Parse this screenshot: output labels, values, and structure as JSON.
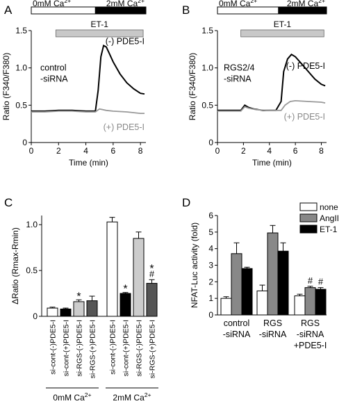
{
  "panels": {
    "A": {
      "letter": "A"
    },
    "B": {
      "letter": "B"
    },
    "C": {
      "letter": "C"
    },
    "D": {
      "letter": "D"
    }
  },
  "chart_data": [
    {
      "id": "A",
      "type": "line",
      "xlabel": "Time (min)",
      "ylabel": "Ratio (F340/F380)",
      "xlim": [
        0,
        8.4
      ],
      "ylim": [
        0,
        1.5
      ],
      "xticks": [
        "0",
        "2",
        "4",
        "6",
        "8"
      ],
      "yticks": [
        "0",
        "0.5",
        "1.0",
        "1.5"
      ],
      "bar_labels": {
        "left": "0mM Ca2+",
        "right": "2mM Ca2+",
        "et1": "ET-1"
      },
      "bar_ranges": {
        "left": [
          0,
          4.7
        ],
        "right": [
          4.7,
          8.4
        ],
        "et1": [
          1.8,
          8.2
        ]
      },
      "annotation": [
        "control",
        "-siRNA"
      ],
      "series": [
        {
          "name": "(-) PDE5-I",
          "color": "#000000",
          "x": [
            0,
            1,
            2,
            3,
            4,
            4.7,
            4.9,
            5.1,
            5.3,
            5.5,
            5.7,
            6.0,
            6.5,
            7.0,
            7.5,
            8.0,
            8.3
          ],
          "y": [
            0.42,
            0.42,
            0.43,
            0.43,
            0.42,
            0.42,
            0.7,
            1.15,
            1.3,
            1.28,
            1.2,
            1.08,
            0.92,
            0.8,
            0.72,
            0.66,
            0.65
          ]
        },
        {
          "name": "(+) PDE5-I",
          "color": "#999999",
          "x": [
            0,
            1,
            2,
            3,
            4,
            4.7,
            5.0,
            5.5,
            6.0,
            7.0,
            8.0,
            8.3
          ],
          "y": [
            0.41,
            0.41,
            0.42,
            0.42,
            0.41,
            0.41,
            0.45,
            0.43,
            0.42,
            0.41,
            0.39,
            0.39
          ]
        }
      ]
    },
    {
      "id": "B",
      "type": "line",
      "xlabel": "Time (min)",
      "ylabel": "Ratio (F340/F380)",
      "xlim": [
        0,
        8.4
      ],
      "ylim": [
        0,
        1.5
      ],
      "xticks": [
        "0",
        "2",
        "4",
        "6",
        "8"
      ],
      "yticks": [
        "0",
        "0.5",
        "1.0",
        "1.5"
      ],
      "bar_labels": {
        "left": "0mM Ca2+",
        "right": "2mM Ca2+",
        "et1": "ET-1"
      },
      "bar_ranges": {
        "left": [
          0,
          4.7
        ],
        "right": [
          4.7,
          8.4
        ],
        "et1": [
          1.8,
          8.2
        ]
      },
      "annotation": [
        "RGS2/4",
        "-siRNA"
      ],
      "series": [
        {
          "name": "(-) PDE5-I",
          "color": "#000000",
          "x": [
            0,
            1,
            1.8,
            2.1,
            2.4,
            2.8,
            3.5,
            4.5,
            4.9,
            5.1,
            5.4,
            5.7,
            6.0,
            6.5,
            7.0,
            7.5,
            8.0,
            8.3
          ],
          "y": [
            0.43,
            0.43,
            0.43,
            0.5,
            0.47,
            0.45,
            0.43,
            0.43,
            0.55,
            0.95,
            1.12,
            1.18,
            1.15,
            1.05,
            0.95,
            0.85,
            0.78,
            0.76
          ]
        },
        {
          "name": "(+) PDE5-I",
          "color": "#999999",
          "x": [
            0,
            1,
            1.8,
            2.1,
            2.4,
            3,
            4,
            4.9,
            5.2,
            5.6,
            6.0,
            7.0,
            8.0,
            8.3
          ],
          "y": [
            0.42,
            0.42,
            0.42,
            0.48,
            0.46,
            0.44,
            0.43,
            0.43,
            0.5,
            0.55,
            0.56,
            0.55,
            0.54,
            0.53
          ]
        }
      ]
    },
    {
      "id": "C",
      "type": "bar",
      "ylabel": "ΔRatio (Rmax-Rmin)",
      "ylim": [
        0,
        1.1
      ],
      "yticks": [
        "0",
        "0.5",
        "1.0"
      ],
      "categories": [
        "si-cont-(-)PDE5-I",
        "si-cont-(+)PDE5-I",
        "si-RGS-(-)PDE5-I",
        "si-RGS-(+)PDE5-I",
        "si-cont-(-)PDE5-I",
        "si-cont-(+)PDE5-I",
        "si-RGS-(-)PDE5-I",
        "si-RGS-(+)PDE5-I"
      ],
      "values": [
        0.09,
        0.08,
        0.16,
        0.17,
        1.03,
        0.25,
        0.85,
        0.36
      ],
      "errors": [
        0.01,
        0.01,
        0.02,
        0.05,
        0.05,
        0.01,
        0.07,
        0.04
      ],
      "fills": [
        "#ffffff",
        "#000000",
        "#cccccc",
        "#555555",
        "#ffffff",
        "#000000",
        "#cccccc",
        "#555555"
      ],
      "marks": [
        "",
        "",
        "*",
        "",
        "",
        "*",
        "",
        "*#"
      ],
      "groups": [
        {
          "label": "0mM Ca2+",
          "range": [
            0,
            3
          ]
        },
        {
          "label": "2mM Ca2+",
          "range": [
            4,
            7
          ]
        }
      ]
    },
    {
      "id": "D",
      "type": "bar",
      "ylabel": "NFAT-Luc activity (fold)",
      "ylim": [
        0,
        6
      ],
      "yticks": [
        "0",
        "1",
        "2",
        "3",
        "4",
        "5",
        "6"
      ],
      "categories": [
        [
          "control",
          "-siRNA"
        ],
        [
          "RGS",
          "-siRNA"
        ],
        [
          "RGS",
          "-siRNA",
          "+PDE5-I"
        ]
      ],
      "series": [
        {
          "name": "none",
          "color": "#ffffff",
          "values": [
            1.0,
            1.45,
            1.15
          ],
          "errors": [
            0.1,
            0.35,
            0.1
          ]
        },
        {
          "name": "AngII",
          "color": "#888888",
          "values": [
            3.7,
            4.95,
            1.65
          ],
          "errors": [
            0.65,
            0.45,
            0.08
          ]
        },
        {
          "name": "ET-1",
          "color": "#000000",
          "values": [
            2.8,
            3.85,
            1.55
          ],
          "errors": [
            0.08,
            0.5,
            0.1
          ]
        }
      ],
      "marks": [
        [
          "",
          "",
          ""
        ],
        [
          "",
          "",
          ""
        ],
        [
          "",
          "#",
          "#"
        ]
      ]
    }
  ]
}
